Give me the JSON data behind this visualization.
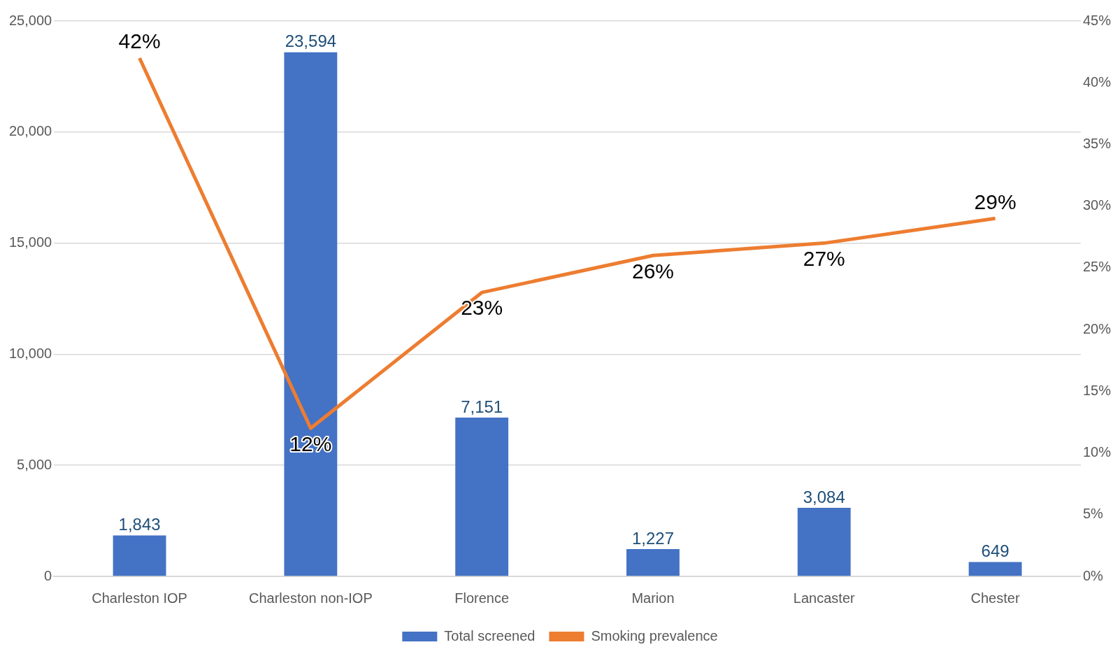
{
  "chart_data": {
    "type": "bar",
    "categories": [
      "Charleston IOP",
      "Charleston non-IOP",
      "Florence",
      "Marion",
      "Lancaster",
      "Chester"
    ],
    "series": [
      {
        "name": "Total screened",
        "color": "#4472c4",
        "values": [
          1843,
          23594,
          7151,
          1227,
          3084,
          649
        ],
        "value_labels": [
          "1,843",
          "23,594",
          "7,151",
          "1,227",
          "3,084",
          "649"
        ]
      },
      {
        "name": "Smoking prevalence",
        "type": "line",
        "axis": "y2",
        "color": "#ed7d31",
        "values": [
          42,
          12,
          23,
          26,
          27,
          29
        ],
        "value_labels": [
          "42%",
          "12%",
          "23%",
          "26%",
          "27%",
          "29%"
        ]
      }
    ],
    "ylim": [
      0,
      25000
    ],
    "yticks": [
      {
        "value": 0,
        "label": "0"
      },
      {
        "value": 5000,
        "label": "5,000"
      },
      {
        "value": 10000,
        "label": "10,000"
      },
      {
        "value": 15000,
        "label": "15,000"
      },
      {
        "value": 20000,
        "label": "20,000"
      },
      {
        "value": 25000,
        "label": "25,000"
      }
    ],
    "y2lim": [
      0,
      45
    ],
    "y2ticks": [
      {
        "value": 0,
        "label": "0%"
      },
      {
        "value": 5,
        "label": "5%"
      },
      {
        "value": 10,
        "label": "10%"
      },
      {
        "value": 15,
        "label": "15%"
      },
      {
        "value": 20,
        "label": "20%"
      },
      {
        "value": 25,
        "label": "25%"
      },
      {
        "value": 30,
        "label": "30%"
      },
      {
        "value": 35,
        "label": "35%"
      },
      {
        "value": 40,
        "label": "40%"
      },
      {
        "value": 45,
        "label": "45%"
      }
    ],
    "grid": "y",
    "legend": "bottom",
    "marker": "none",
    "line_style": "solid"
  }
}
